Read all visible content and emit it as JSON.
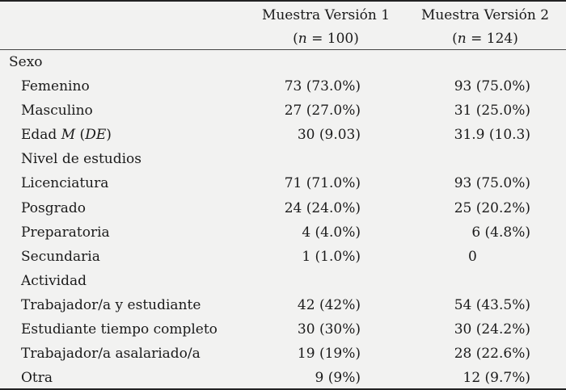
{
  "header": {
    "col1_title": "Muestra Versión 1",
    "col1_n_prefix": "(",
    "col1_n_italic": "n",
    "col1_n_rest": " = 100)",
    "col2_title": "Muestra Versión 2",
    "col2_n_prefix": "(",
    "col2_n_italic": "n",
    "col2_n_rest": " = 124)"
  },
  "rows": [
    {
      "label": "Sexo",
      "v1": "",
      "v2": ""
    },
    {
      "label": "Femenino",
      "v1": "73 (73.0%)",
      "v2": "93 (75.0%)"
    },
    {
      "label": "Masculino",
      "v1": "27 (27.0%)",
      "v2": "31 (25.0%)"
    },
    {
      "label_prefix": "Edad ",
      "label_italic_m": "M",
      "label_mid": " (",
      "label_italic_de": "DE",
      "label_suffix": ")",
      "v1": "30 (9.03)",
      "v2": "31.9 (10.3)"
    },
    {
      "label": "Nivel de estudios",
      "v1": "",
      "v2": ""
    },
    {
      "label": "Licenciatura",
      "v1": "71 (71.0%)",
      "v2": "93 (75.0%)"
    },
    {
      "label": "Posgrado",
      "v1": "24 (24.0%)",
      "v2": "25 (20.2%)"
    },
    {
      "label": "Preparatoria",
      "v1": "4 (4.0%)",
      "v2": "6 (4.8%)"
    },
    {
      "label": "Secundaria",
      "v1": "1 (1.0%)",
      "v2": "0"
    },
    {
      "label": "Actividad",
      "v1": "",
      "v2": ""
    },
    {
      "label": "Trabajador/a y estudiante",
      "v1": "42 (42%)",
      "v2": "54 (43.5%)"
    },
    {
      "label": "Estudiante tiempo completo",
      "v1": "30 (30%)",
      "v2": "30 (24.2%)"
    },
    {
      "label": "Trabajador/a asalariado/a",
      "v1": "19 (19%)",
      "v2": "28 (22.6%)"
    },
    {
      "label": "Otra",
      "v1": "9 (9%)",
      "v2": "12 (9.7%)"
    }
  ]
}
